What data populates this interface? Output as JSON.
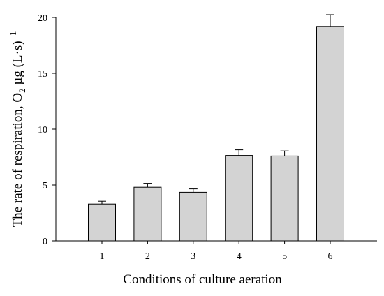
{
  "chart_data": {
    "type": "bar",
    "categories": [
      "1",
      "2",
      "3",
      "4",
      "5",
      "6"
    ],
    "values": [
      3.3,
      4.8,
      4.35,
      7.65,
      7.6,
      19.2
    ],
    "errors": [
      0.25,
      0.35,
      0.3,
      0.5,
      0.45,
      1.05
    ],
    "xlabel": "Conditions of culture aeration",
    "ylabel": {
      "prefix": "The rate of respiration, O",
      "subscript": "2",
      "unit": " µg (L·s)",
      "superscript": "−1"
    },
    "ylim": [
      0,
      20
    ],
    "yticks": [
      0,
      5,
      10,
      15,
      20
    ],
    "grid": false,
    "bar_color": "#d3d3d3",
    "edge_color": "#000000"
  }
}
